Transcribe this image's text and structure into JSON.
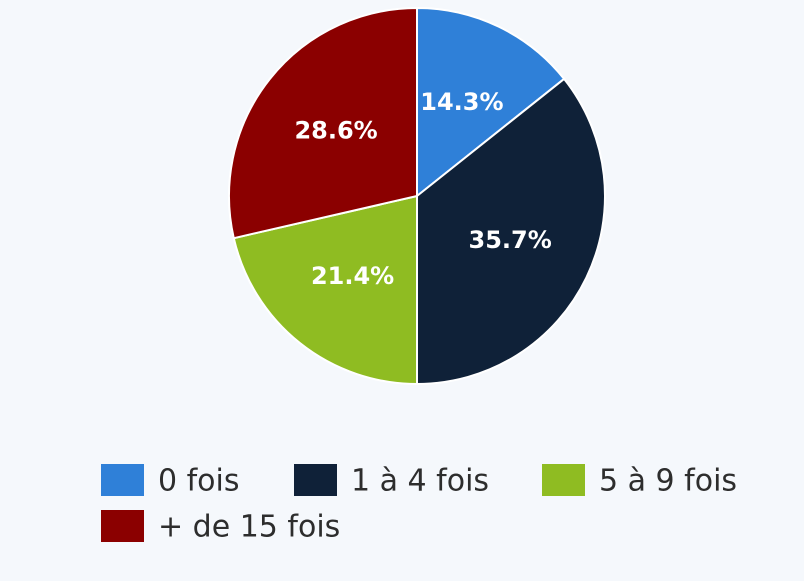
{
  "chart_data": {
    "type": "pie",
    "categories": [
      "0 fois",
      "1 à 4 fois",
      "5 à 9 fois",
      "+ de 15 fois"
    ],
    "values": [
      14.3,
      35.7,
      21.4,
      28.6
    ],
    "value_labels": [
      "14.3%",
      "35.7%",
      "21.4%",
      "28.6%"
    ],
    "colors": [
      "#2f80d8",
      "#0f2138",
      "#8fbc22",
      "#8b0000"
    ]
  }
}
